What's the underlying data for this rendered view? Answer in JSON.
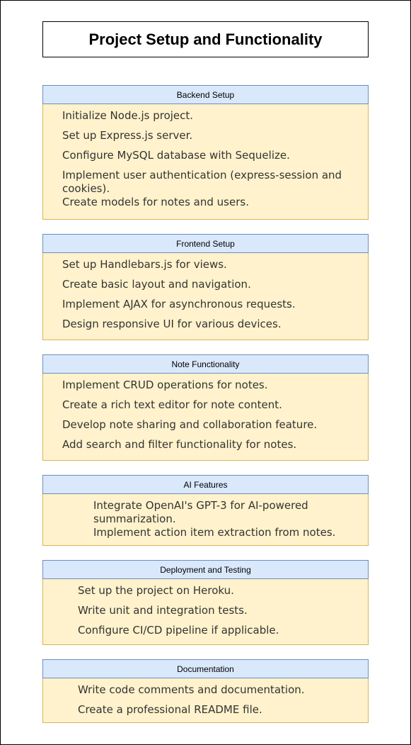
{
  "title": "Project Setup and Functionality",
  "sections": [
    {
      "header": "Backend Setup",
      "items": [
        "Initialize Node.js project.",
        "Set up Express.js server.",
        "Configure MySQL database with Sequelize.",
        "Implement user authentication (express-session and",
        "cookies).",
        "Create models for notes and users."
      ]
    },
    {
      "header": "Frontend Setup",
      "items": [
        "Set up Handlebars.js for views.",
        "Create basic layout and navigation.",
        "Implement AJAX for asynchronous requests.",
        "Design responsive UI for various devices."
      ]
    },
    {
      "header": "Note Functionality",
      "items": [
        "Implement CRUD operations for notes.",
        "Create a rich text editor for note content.",
        "Develop note sharing and collaboration feature.",
        "Add search and filter functionality for notes."
      ]
    },
    {
      "header": "AI Features",
      "items": [
        "Integrate OpenAI's GPT-3 for AI-powered",
        "summarization.",
        "Implement action item extraction from notes."
      ]
    },
    {
      "header": "Deployment and Testing",
      "items": [
        "Set up the project on Heroku.",
        "Write unit and integration tests.",
        "Configure CI/CD pipeline if applicable."
      ]
    },
    {
      "header": "Documentation",
      "items": [
        "Write code comments and documentation.",
        "Create a professional README file."
      ]
    }
  ],
  "colors": {
    "header_fill": "#dae8fc",
    "header_border": "#6c8ebf",
    "body_fill": "#fff2cc",
    "body_border": "#d6b656"
  }
}
